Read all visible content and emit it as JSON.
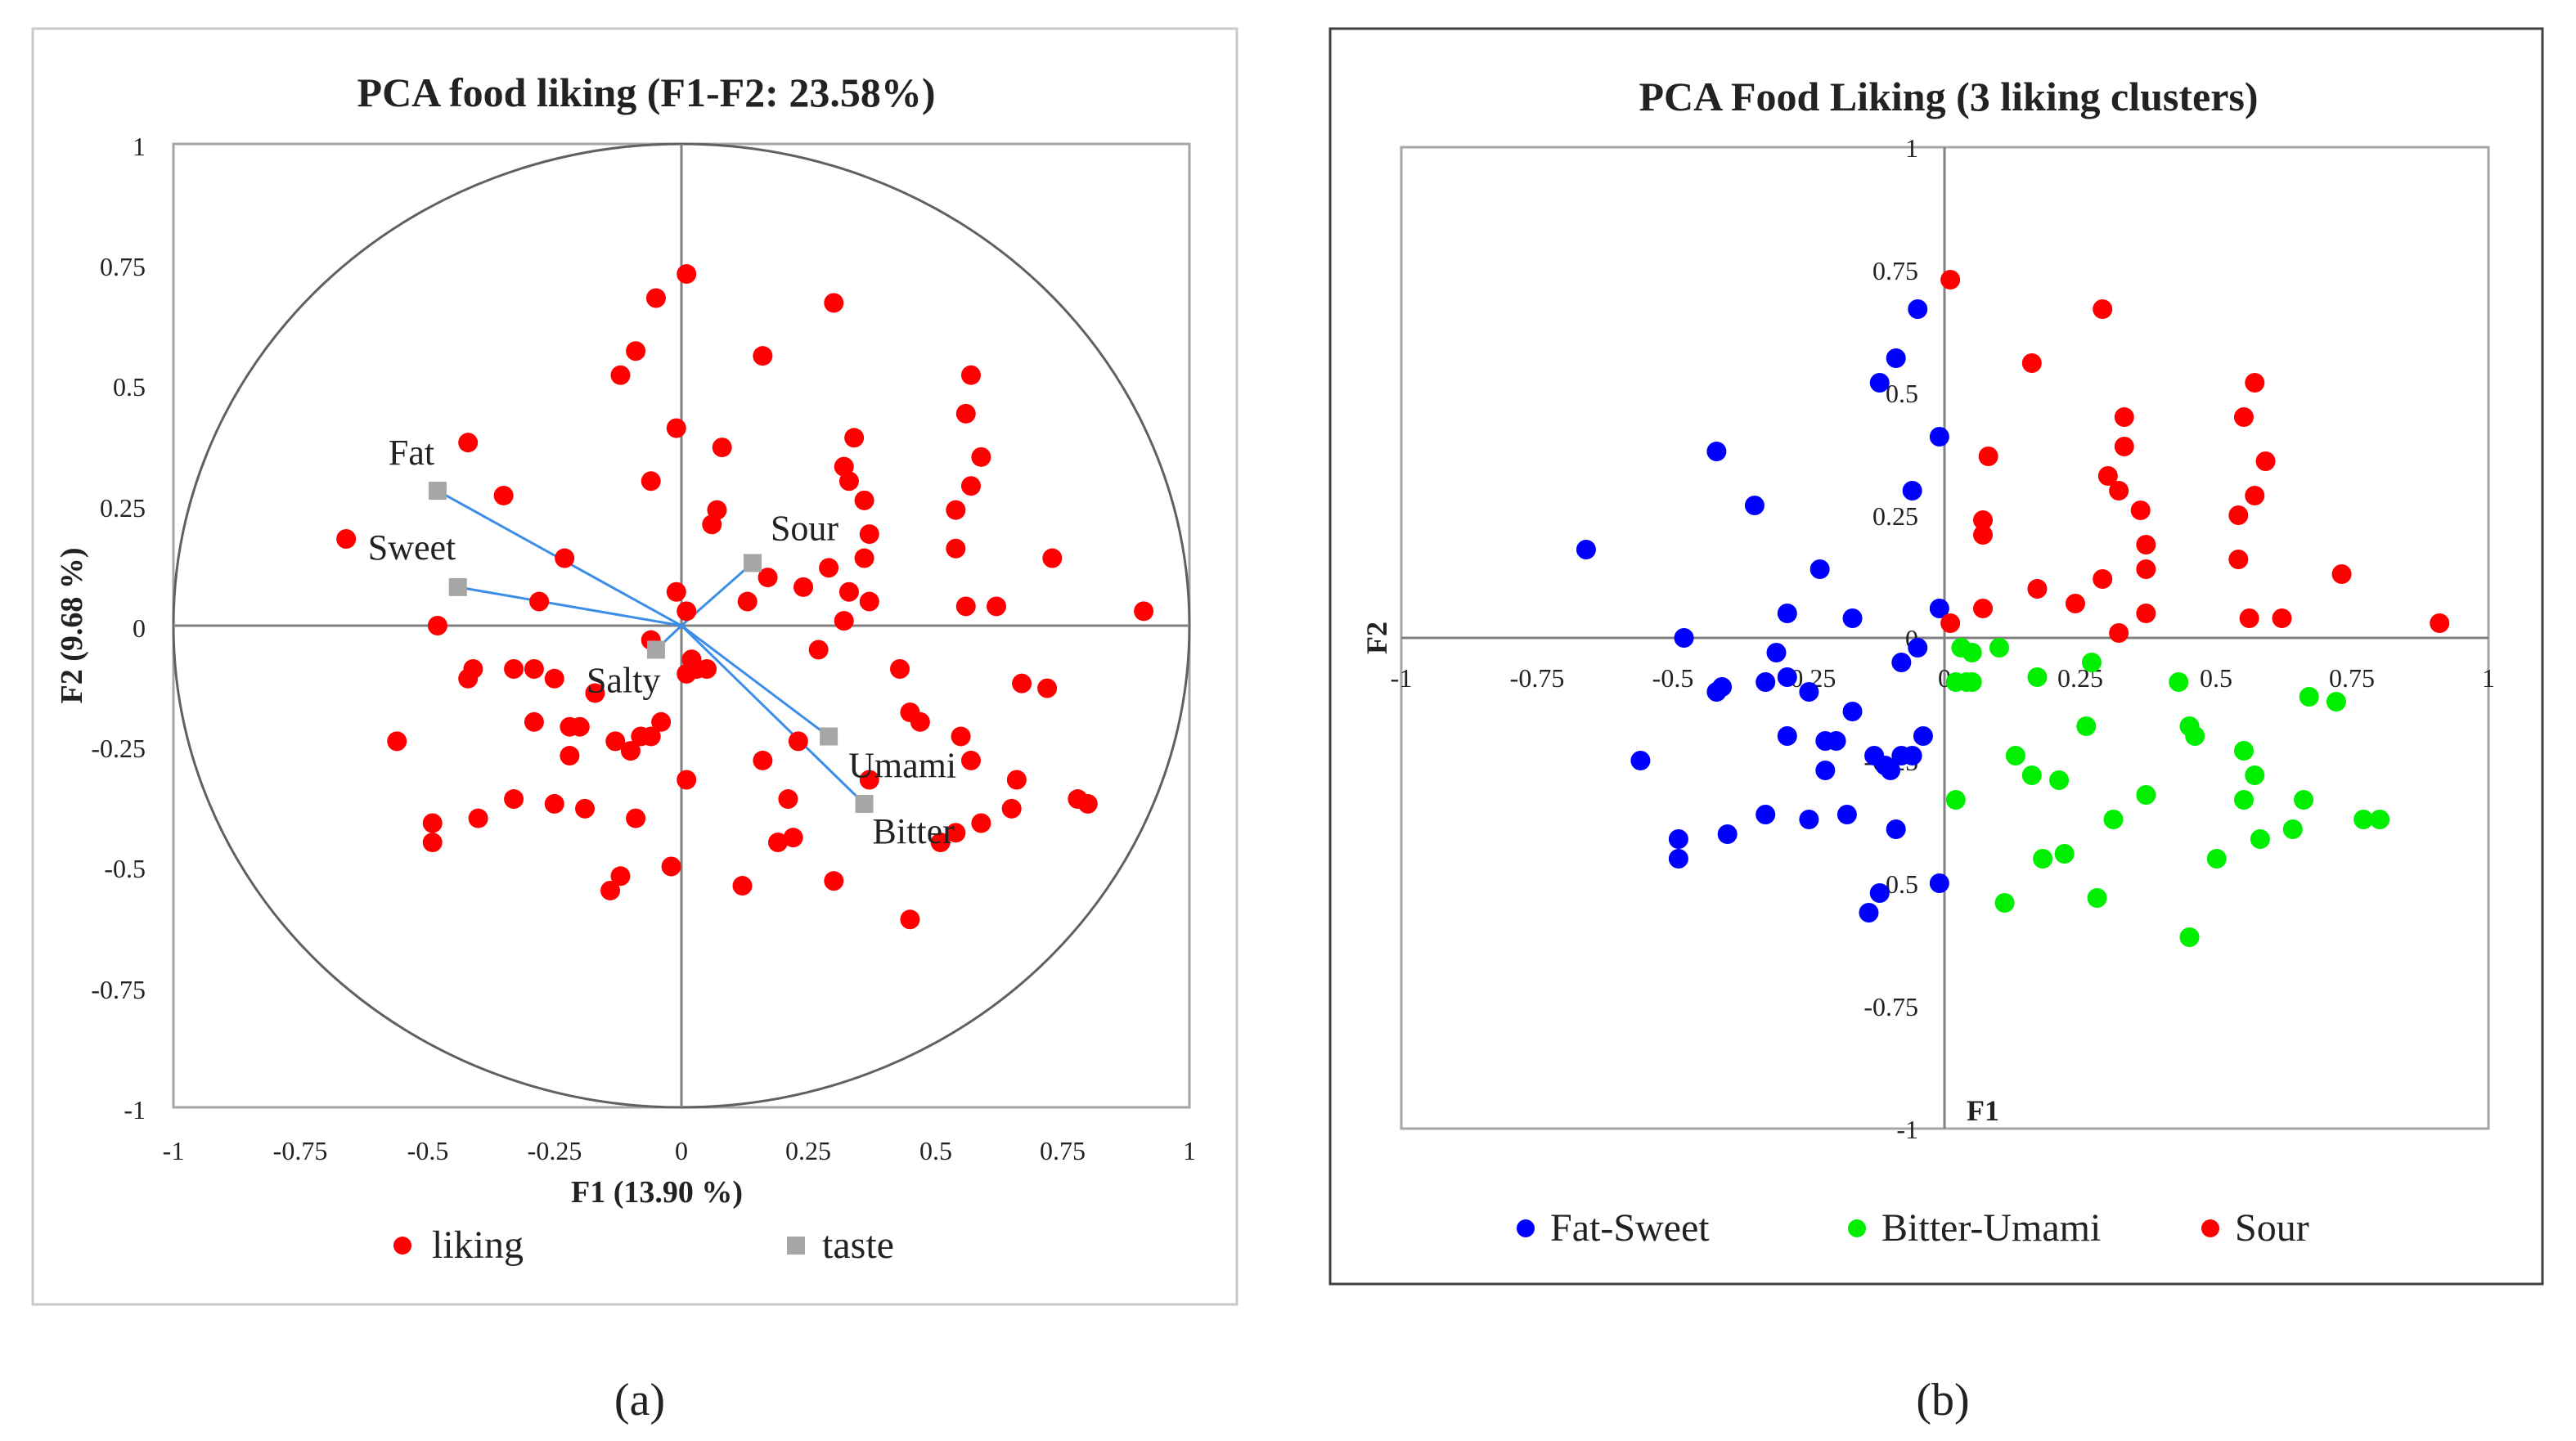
{
  "colors": {
    "liking": "#ff0000",
    "fat_sweet": "#0000ff",
    "bitter_umami": "#00ee00",
    "sour": "#ff0000",
    "taste": "#a6a6a6",
    "vector": "#3b8ee8",
    "axis": "#808080"
  },
  "subfigure_labels": [
    "(a)",
    "(b)"
  ],
  "chart_data": [
    {
      "type": "scatter",
      "title": "PCA food liking (F1-F2: 23.58%)",
      "xlabel": "F1 (13.90 %)",
      "ylabel": "F2 (9.68 %)",
      "xlim": [
        -1,
        1
      ],
      "ylim": [
        -1,
        1
      ],
      "ticks": [
        "-1",
        "-0.75",
        "-0.5",
        "-0.25",
        "0",
        "0.25",
        "0.5",
        "0.75",
        "1"
      ],
      "tick_values": [
        -1,
        -0.75,
        -0.5,
        -0.25,
        0,
        0.25,
        0.5,
        0.75,
        1
      ],
      "unit_circle": true,
      "legend": [
        "liking",
        "taste"
      ],
      "series": [
        {
          "name": "liking",
          "marker": "circle",
          "points": [
            [
              0.01,
              0.73
            ],
            [
              0.3,
              0.67
            ],
            [
              -0.05,
              0.68
            ],
            [
              -0.09,
              0.57
            ],
            [
              0.16,
              0.56
            ],
            [
              -0.12,
              0.52
            ],
            [
              0.57,
              0.52
            ],
            [
              0.56,
              0.44
            ],
            [
              -0.01,
              0.41
            ],
            [
              0.34,
              0.39
            ],
            [
              -0.42,
              0.38
            ],
            [
              0.08,
              0.37
            ],
            [
              0.59,
              0.35
            ],
            [
              0.32,
              0.33
            ],
            [
              0.33,
              0.3
            ],
            [
              -0.06,
              0.3
            ],
            [
              0.57,
              0.29
            ],
            [
              -0.35,
              0.27
            ],
            [
              0.36,
              0.26
            ],
            [
              0.54,
              0.24
            ],
            [
              0.07,
              0.24
            ],
            [
              0.06,
              0.21
            ],
            [
              0.37,
              0.19
            ],
            [
              -0.66,
              0.18
            ],
            [
              0.54,
              0.16
            ],
            [
              0.73,
              0.14
            ],
            [
              -0.23,
              0.14
            ],
            [
              0.36,
              0.14
            ],
            [
              0.29,
              0.12
            ],
            [
              0.17,
              0.1
            ],
            [
              0.24,
              0.08
            ],
            [
              0.33,
              0.07
            ],
            [
              -0.01,
              0.07
            ],
            [
              0.37,
              0.05
            ],
            [
              0.13,
              0.05
            ],
            [
              0.56,
              0.04
            ],
            [
              0.62,
              0.04
            ],
            [
              0.91,
              0.03
            ],
            [
              -0.28,
              0.05
            ],
            [
              0.01,
              0.03
            ],
            [
              -0.48,
              0.0
            ],
            [
              0.32,
              0.01
            ],
            [
              -0.06,
              -0.03
            ],
            [
              0.27,
              -0.05
            ],
            [
              0.02,
              -0.07
            ],
            [
              -0.33,
              -0.09
            ],
            [
              -0.29,
              -0.09
            ],
            [
              0.03,
              -0.09
            ],
            [
              -0.41,
              -0.09
            ],
            [
              0.05,
              -0.09
            ],
            [
              0.43,
              -0.09
            ],
            [
              -0.42,
              -0.11
            ],
            [
              0.01,
              -0.1
            ],
            [
              -0.25,
              -0.11
            ],
            [
              0.67,
              -0.12
            ],
            [
              0.72,
              -0.13
            ],
            [
              -0.17,
              -0.14
            ],
            [
              0.45,
              -0.18
            ],
            [
              -0.29,
              -0.2
            ],
            [
              -0.04,
              -0.2
            ],
            [
              0.47,
              -0.2
            ],
            [
              -0.22,
              -0.21
            ],
            [
              -0.2,
              -0.21
            ],
            [
              0.55,
              -0.23
            ],
            [
              -0.08,
              -0.23
            ],
            [
              -0.06,
              -0.23
            ],
            [
              -0.13,
              -0.24
            ],
            [
              0.23,
              -0.24
            ],
            [
              -0.56,
              -0.24
            ],
            [
              -0.1,
              -0.26
            ],
            [
              -0.22,
              -0.27
            ],
            [
              0.16,
              -0.28
            ],
            [
              0.57,
              -0.28
            ],
            [
              0.01,
              -0.32
            ],
            [
              0.66,
              -0.32
            ],
            [
              0.37,
              -0.32
            ],
            [
              -0.33,
              -0.36
            ],
            [
              0.21,
              -0.36
            ],
            [
              -0.25,
              -0.37
            ],
            [
              -0.19,
              -0.38
            ],
            [
              0.78,
              -0.36
            ],
            [
              0.8,
              -0.37
            ],
            [
              0.65,
              -0.38
            ],
            [
              -0.4,
              -0.4
            ],
            [
              -0.09,
              -0.4
            ],
            [
              -0.49,
              -0.41
            ],
            [
              0.59,
              -0.41
            ],
            [
              0.54,
              -0.43
            ],
            [
              0.22,
              -0.44
            ],
            [
              0.19,
              -0.45
            ],
            [
              -0.49,
              -0.45
            ],
            [
              0.51,
              -0.45
            ],
            [
              -0.02,
              -0.5
            ],
            [
              -0.12,
              -0.52
            ],
            [
              0.3,
              -0.53
            ],
            [
              0.12,
              -0.54
            ],
            [
              -0.14,
              -0.55
            ],
            [
              0.45,
              -0.61
            ]
          ]
        },
        {
          "name": "taste",
          "marker": "square",
          "points": [
            {
              "label": "Fat",
              "x": -0.48,
              "y": 0.28
            },
            {
              "label": "Sweet",
              "x": -0.44,
              "y": 0.08
            },
            {
              "label": "Sour",
              "x": 0.14,
              "y": 0.13
            },
            {
              "label": "Salty",
              "x": -0.05,
              "y": -0.05
            },
            {
              "label": "Umami",
              "x": 0.29,
              "y": -0.23
            },
            {
              "label": "Bitter",
              "x": 0.36,
              "y": -0.37
            }
          ]
        }
      ]
    },
    {
      "type": "scatter",
      "title": "PCA Food Liking (3 liking clusters)",
      "xlabel": "F1",
      "ylabel": "F2",
      "xlim": [
        -1,
        1
      ],
      "ylim": [
        -1,
        1
      ],
      "ticks": [
        "-1",
        "-0.75",
        "-0.5",
        "-0.25",
        "0",
        "0.25",
        "0.5",
        "0.75",
        "1"
      ],
      "tick_values": [
        -1,
        -0.75,
        -0.5,
        -0.25,
        0,
        0.25,
        0.5,
        0.75,
        1
      ],
      "legend": [
        "Fat-Sweet",
        "Bitter-Umami",
        "Sour"
      ],
      "series": [
        {
          "name": "Fat-Sweet",
          "points": [
            [
              -0.66,
              0.18
            ],
            [
              -0.42,
              0.38
            ],
            [
              -0.35,
              0.27
            ],
            [
              -0.12,
              0.52
            ],
            [
              -0.09,
              0.57
            ],
            [
              -0.05,
              0.67
            ],
            [
              -0.01,
              0.41
            ],
            [
              -0.06,
              0.3
            ],
            [
              -0.23,
              0.14
            ],
            [
              -0.29,
              0.05
            ],
            [
              -0.17,
              0.04
            ],
            [
              -0.48,
              0.0
            ],
            [
              -0.05,
              -0.02
            ],
            [
              -0.08,
              -0.05
            ],
            [
              -0.01,
              0.06
            ],
            [
              -0.31,
              -0.03
            ],
            [
              -0.29,
              -0.08
            ],
            [
              -0.33,
              -0.09
            ],
            [
              -0.41,
              -0.1
            ],
            [
              -0.42,
              -0.11
            ],
            [
              -0.25,
              -0.11
            ],
            [
              -0.17,
              -0.15
            ],
            [
              -0.29,
              -0.2
            ],
            [
              -0.22,
              -0.21
            ],
            [
              -0.2,
              -0.21
            ],
            [
              -0.04,
              -0.2
            ],
            [
              -0.13,
              -0.24
            ],
            [
              -0.11,
              -0.26
            ],
            [
              -0.08,
              -0.24
            ],
            [
              -0.06,
              -0.24
            ],
            [
              -0.56,
              -0.25
            ],
            [
              -0.22,
              -0.27
            ],
            [
              -0.1,
              -0.27
            ],
            [
              -0.33,
              -0.36
            ],
            [
              -0.25,
              -0.37
            ],
            [
              -0.18,
              -0.36
            ],
            [
              -0.09,
              -0.39
            ],
            [
              -0.49,
              -0.41
            ],
            [
              -0.4,
              -0.4
            ],
            [
              -0.49,
              -0.45
            ],
            [
              -0.12,
              -0.52
            ],
            [
              -0.01,
              -0.5
            ],
            [
              -0.14,
              -0.56
            ]
          ]
        },
        {
          "name": "Bitter-Umami",
          "points": [
            [
              0.03,
              -0.02
            ],
            [
              0.05,
              -0.03
            ],
            [
              0.1,
              -0.02
            ],
            [
              0.27,
              -0.05
            ],
            [
              0.02,
              -0.09
            ],
            [
              0.05,
              -0.09
            ],
            [
              0.04,
              -0.09
            ],
            [
              0.17,
              -0.08
            ],
            [
              0.43,
              -0.09
            ],
            [
              0.67,
              -0.12
            ],
            [
              0.72,
              -0.13
            ],
            [
              0.26,
              -0.18
            ],
            [
              0.45,
              -0.18
            ],
            [
              0.46,
              -0.2
            ],
            [
              0.55,
              -0.23
            ],
            [
              0.13,
              -0.24
            ],
            [
              0.16,
              -0.28
            ],
            [
              0.21,
              -0.29
            ],
            [
              0.57,
              -0.28
            ],
            [
              0.02,
              -0.33
            ],
            [
              0.37,
              -0.32
            ],
            [
              0.55,
              -0.33
            ],
            [
              0.66,
              -0.33
            ],
            [
              0.31,
              -0.37
            ],
            [
              0.77,
              -0.37
            ],
            [
              0.8,
              -0.37
            ],
            [
              0.64,
              -0.39
            ],
            [
              0.58,
              -0.41
            ],
            [
              0.22,
              -0.44
            ],
            [
              0.18,
              -0.45
            ],
            [
              0.5,
              -0.45
            ],
            [
              0.28,
              -0.53
            ],
            [
              0.11,
              -0.54
            ],
            [
              0.45,
              -0.61
            ]
          ]
        },
        {
          "name": "Sour",
          "points": [
            [
              0.01,
              0.73
            ],
            [
              0.29,
              0.67
            ],
            [
              0.16,
              0.56
            ],
            [
              0.57,
              0.52
            ],
            [
              0.55,
              0.45
            ],
            [
              0.33,
              0.45
            ],
            [
              0.33,
              0.39
            ],
            [
              0.08,
              0.37
            ],
            [
              0.59,
              0.36
            ],
            [
              0.3,
              0.33
            ],
            [
              0.32,
              0.3
            ],
            [
              0.57,
              0.29
            ],
            [
              0.36,
              0.26
            ],
            [
              0.54,
              0.25
            ],
            [
              0.07,
              0.24
            ],
            [
              0.07,
              0.21
            ],
            [
              0.37,
              0.19
            ],
            [
              0.54,
              0.16
            ],
            [
              0.37,
              0.14
            ],
            [
              0.73,
              0.13
            ],
            [
              0.29,
              0.12
            ],
            [
              0.17,
              0.1
            ],
            [
              0.24,
              0.07
            ],
            [
              0.07,
              0.06
            ],
            [
              0.37,
              0.05
            ],
            [
              0.62,
              0.04
            ],
            [
              0.56,
              0.04
            ],
            [
              0.91,
              0.03
            ],
            [
              0.01,
              0.03
            ],
            [
              0.32,
              0.01
            ]
          ]
        }
      ]
    }
  ]
}
